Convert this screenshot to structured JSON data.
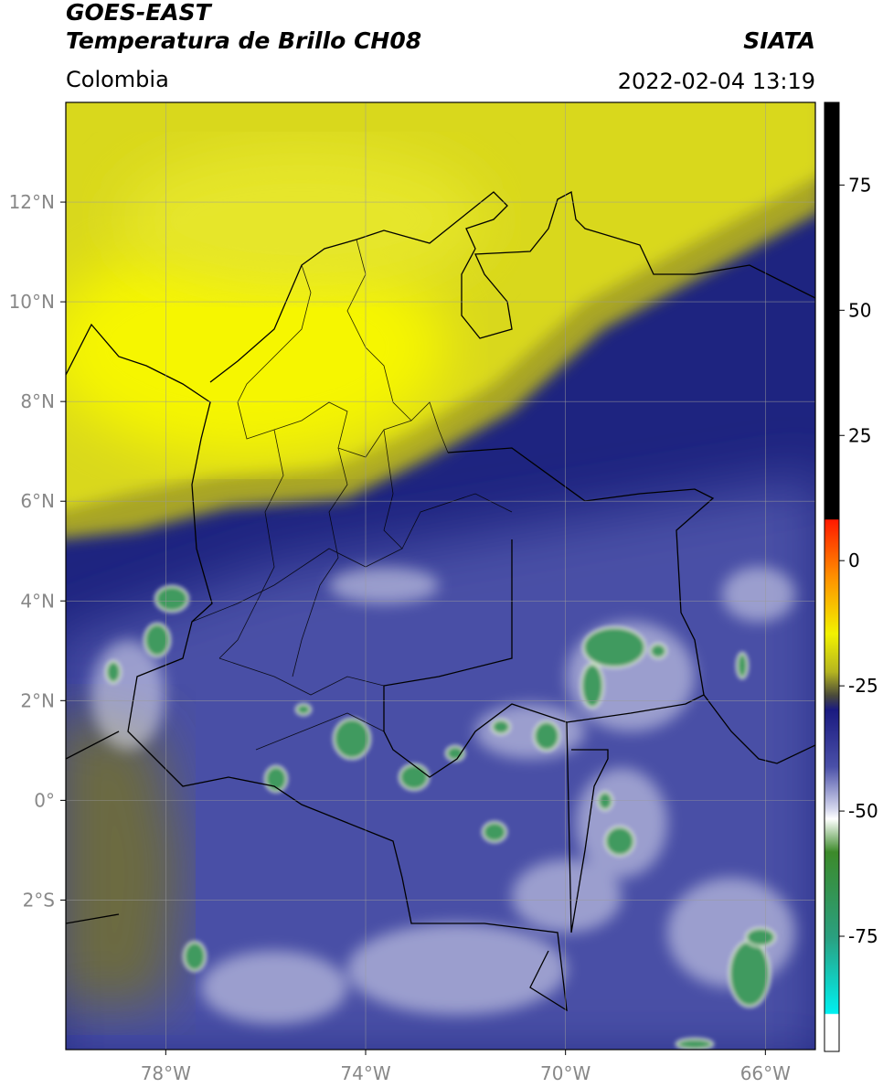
{
  "header": {
    "title": "GOES-EAST",
    "subtitle": "Temperatura de Brillo CH08",
    "source": "SIATA",
    "region": "Colombia",
    "timestamp": "2022-02-04 13:19"
  },
  "map": {
    "xlim": [
      -80,
      -65
    ],
    "ylim": [
      -5,
      14
    ],
    "xticks": [
      {
        "value": -78,
        "label": "78°W"
      },
      {
        "value": -74,
        "label": "74°W"
      },
      {
        "value": -70,
        "label": "70°W"
      },
      {
        "value": -66,
        "label": "66°W"
      }
    ],
    "yticks": [
      {
        "value": -2,
        "label": "2°S"
      },
      {
        "value": 0,
        "label": "0°"
      },
      {
        "value": 2,
        "label": "2°N"
      },
      {
        "value": 4,
        "label": "4°N"
      },
      {
        "value": 6,
        "label": "6°N"
      },
      {
        "value": 8,
        "label": "8°N"
      },
      {
        "value": 10,
        "label": "10°N"
      },
      {
        "value": 12,
        "label": "12°N"
      }
    ],
    "grid": true
  },
  "colorbar": {
    "lim": [
      -98,
      91.5
    ],
    "ticks": [
      -75,
      -50,
      -25,
      0,
      25,
      50,
      75
    ]
  }
}
